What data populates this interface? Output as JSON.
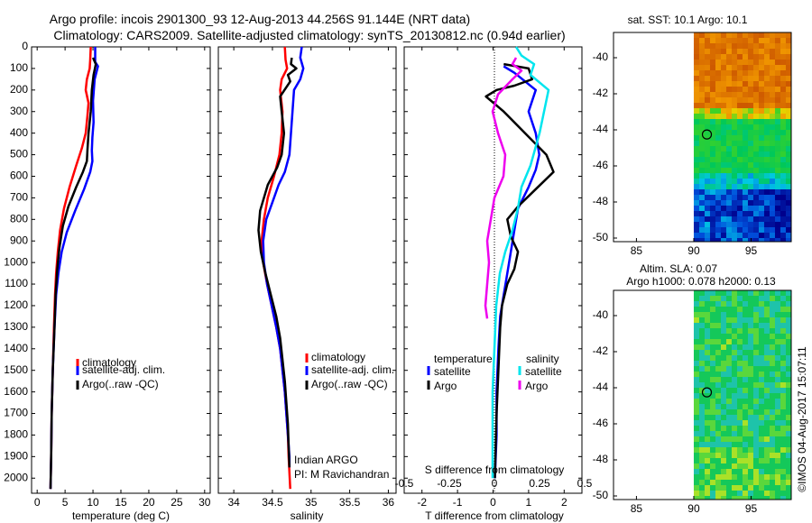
{
  "header": {
    "title_line1": "Argo profile: incois 2901300_93 12-Aug-2013 44.256S 91.144E (NRT data)",
    "title_line2": "Climatology: CARS2009. Satellite-adjusted climatology: synTS_20130812.nc (0.94d earlier)"
  },
  "colors": {
    "climatology": "#ff0000",
    "satellite": "#0000ff",
    "argo": "#000000",
    "sat_salinity": "#00e5ee",
    "argo_salinity": "#ee00ee"
  },
  "chart_data": [
    {
      "type": "line",
      "id": "temperature",
      "xlabel": "temperature (deg C)",
      "ylabel": "",
      "xlim": [
        -1,
        31
      ],
      "ylim": [
        2070,
        0
      ],
      "xticks": [
        "0",
        "5",
        "10",
        "15",
        "20",
        "25",
        "30"
      ],
      "xtick_values": [
        0,
        5,
        10,
        15,
        20,
        25,
        30
      ],
      "yticks": [
        0,
        100,
        200,
        300,
        400,
        500,
        600,
        700,
        800,
        900,
        1000,
        1100,
        1200,
        1300,
        1400,
        1500,
        1600,
        1700,
        1800,
        1900,
        2000
      ],
      "legend": [
        "climatology",
        "satellite-adj. clim.",
        "Argo(..raw -QC)"
      ],
      "series": [
        {
          "name": "climatology",
          "color": "#ff0000",
          "points": [
            [
              9.6,
              0
            ],
            [
              9.5,
              60
            ],
            [
              9.4,
              100
            ],
            [
              8.9,
              150
            ],
            [
              8.7,
              200
            ],
            [
              9.2,
              260
            ],
            [
              9.0,
              320
            ],
            [
              8.7,
              400
            ],
            [
              8.0,
              470
            ],
            [
              7.0,
              550
            ],
            [
              5.8,
              650
            ],
            [
              4.8,
              750
            ],
            [
              4.1,
              850
            ],
            [
              3.7,
              950
            ],
            [
              3.4,
              1050
            ],
            [
              3.2,
              1150
            ],
            [
              3.0,
              1300
            ],
            [
              2.8,
              1500
            ],
            [
              2.6,
              1700
            ],
            [
              2.5,
              1900
            ],
            [
              2.4,
              2050
            ]
          ]
        },
        {
          "name": "satellite-adj. clim.",
          "color": "#0000ff",
          "points": [
            [
              10.4,
              0
            ],
            [
              10.4,
              70
            ],
            [
              10.9,
              90
            ],
            [
              10.3,
              150
            ],
            [
              10.0,
              250
            ],
            [
              10.1,
              350
            ],
            [
              9.9,
              420
            ],
            [
              9.8,
              480
            ],
            [
              9.9,
              530
            ],
            [
              9.5,
              580
            ],
            [
              8.4,
              660
            ],
            [
              6.8,
              760
            ],
            [
              5.3,
              860
            ],
            [
              4.4,
              950
            ],
            [
              3.8,
              1050
            ],
            [
              3.4,
              1150
            ],
            [
              3.1,
              1300
            ],
            [
              2.8,
              1500
            ],
            [
              2.6,
              1700
            ],
            [
              2.5,
              1900
            ],
            [
              2.4,
              2050
            ]
          ]
        },
        {
          "name": "Argo(..raw -QC)",
          "color": "#000000",
          "points": [
            [
              10.0,
              50
            ],
            [
              10.5,
              80
            ],
            [
              10.1,
              130
            ],
            [
              9.8,
              200
            ],
            [
              9.6,
              300
            ],
            [
              9.2,
              400
            ],
            [
              9.0,
              480
            ],
            [
              8.9,
              530
            ],
            [
              8.2,
              580
            ],
            [
              7.0,
              650
            ],
            [
              5.6,
              740
            ],
            [
              4.6,
              830
            ],
            [
              4.0,
              930
            ],
            [
              3.6,
              1030
            ],
            [
              3.3,
              1150
            ],
            [
              3.1,
              1300
            ],
            [
              2.8,
              1500
            ],
            [
              2.6,
              1700
            ],
            [
              2.5,
              1900
            ],
            [
              2.4,
              2050
            ]
          ]
        }
      ]
    },
    {
      "type": "line",
      "id": "salinity",
      "xlabel": "salinity",
      "xlim": [
        33.8,
        36.1
      ],
      "ylim": [
        2070,
        0
      ],
      "xticks": [
        "34",
        "34.5",
        "35",
        "35.5",
        "36"
      ],
      "xtick_values": [
        34,
        34.5,
        35,
        35.5,
        36
      ],
      "legend": [
        "climatology",
        "satellite-adj. clim.",
        "Argo(..raw -QC)"
      ],
      "annotation": [
        "Indian ARGO",
        "PI: M Ravichandran"
      ],
      "series": [
        {
          "name": "climatology",
          "color": "#ff0000",
          "points": [
            [
              34.66,
              0
            ],
            [
              34.67,
              60
            ],
            [
              34.69,
              100
            ],
            [
              34.62,
              150
            ],
            [
              34.6,
              200
            ],
            [
              34.63,
              300
            ],
            [
              34.62,
              400
            ],
            [
              34.59,
              500
            ],
            [
              34.52,
              600
            ],
            [
              34.44,
              700
            ],
            [
              34.39,
              800
            ],
            [
              34.36,
              900
            ],
            [
              34.38,
              1000
            ],
            [
              34.43,
              1100
            ],
            [
              34.49,
              1200
            ],
            [
              34.55,
              1300
            ],
            [
              34.6,
              1400
            ],
            [
              34.63,
              1500
            ],
            [
              34.66,
              1600
            ],
            [
              34.68,
              1700
            ],
            [
              34.7,
              1800
            ],
            [
              34.71,
              1900
            ],
            [
              34.73,
              2050
            ]
          ]
        },
        {
          "name": "satellite-adj. clim.",
          "color": "#0000ff",
          "points": [
            [
              34.88,
              0
            ],
            [
              34.86,
              50
            ],
            [
              34.9,
              100
            ],
            [
              34.86,
              150
            ],
            [
              34.78,
              200
            ],
            [
              34.76,
              300
            ],
            [
              34.74,
              400
            ],
            [
              34.72,
              500
            ],
            [
              34.66,
              580
            ],
            [
              34.58,
              640
            ],
            [
              34.5,
              720
            ],
            [
              34.42,
              800
            ],
            [
              34.38,
              900
            ],
            [
              34.39,
              1000
            ],
            [
              34.43,
              1100
            ],
            [
              34.49,
              1200
            ],
            [
              34.55,
              1300
            ],
            [
              34.6,
              1400
            ],
            [
              34.63,
              1500
            ],
            [
              34.66,
              1600
            ],
            [
              34.68,
              1700
            ],
            [
              34.7,
              1800
            ],
            [
              34.72,
              1900
            ],
            [
              34.72,
              1950
            ]
          ]
        },
        {
          "name": "Argo(..raw -QC)",
          "color": "#000000",
          "points": [
            [
              34.75,
              50
            ],
            [
              34.74,
              80
            ],
            [
              34.81,
              100
            ],
            [
              34.7,
              130
            ],
            [
              34.73,
              160
            ],
            [
              34.6,
              230
            ],
            [
              34.62,
              300
            ],
            [
              34.65,
              400
            ],
            [
              34.62,
              500
            ],
            [
              34.56,
              560
            ],
            [
              34.44,
              640
            ],
            [
              34.34,
              760
            ],
            [
              34.32,
              850
            ],
            [
              34.35,
              950
            ],
            [
              34.41,
              1050
            ],
            [
              34.48,
              1150
            ],
            [
              34.55,
              1250
            ],
            [
              34.6,
              1350
            ],
            [
              34.63,
              1450
            ],
            [
              34.66,
              1550
            ],
            [
              34.68,
              1650
            ],
            [
              34.7,
              1750
            ],
            [
              34.71,
              1850
            ],
            [
              34.72,
              1950
            ]
          ]
        }
      ]
    },
    {
      "type": "line",
      "id": "difference",
      "xlabel": "T difference from climatology",
      "xlabel2": "S difference from climatology",
      "xlim": [
        -2.5,
        2.5
      ],
      "ylim": [
        2070,
        0
      ],
      "xticks": [
        "-2",
        "-1",
        "0",
        "1",
        "2"
      ],
      "xtick_values": [
        -2,
        -1,
        0,
        1,
        2
      ],
      "s_ticks": [
        "-0.5",
        "-0.25",
        "0",
        "0.25",
        "0.5"
      ],
      "s_tick_values": [
        -0.5,
        -0.25,
        0,
        0.25,
        0.5
      ],
      "legend_heads": [
        "temperature",
        "salinity"
      ],
      "legend": [
        "satellite",
        "Argo",
        "satellite",
        "Argo"
      ],
      "series": [
        {
          "name": "T satellite",
          "color": "#0000ff",
          "points": [
            [
              0.3,
              90
            ],
            [
              0.6,
              120
            ],
            [
              1.2,
              200
            ],
            [
              1.0,
              300
            ],
            [
              1.2,
              400
            ],
            [
              1.3,
              500
            ],
            [
              1.2,
              570
            ],
            [
              1.0,
              650
            ],
            [
              0.7,
              750
            ],
            [
              0.6,
              850
            ],
            [
              0.5,
              950
            ],
            [
              0.4,
              1050
            ],
            [
              0.3,
              1150
            ],
            [
              0.2,
              1250
            ],
            [
              0.15,
              1400
            ],
            [
              0.1,
              1600
            ],
            [
              0.1,
              1800
            ],
            [
              0.05,
              2000
            ]
          ]
        },
        {
          "name": "T Argo",
          "color": "#000000",
          "points": [
            [
              0.3,
              80
            ],
            [
              1.0,
              100
            ],
            [
              1.1,
              150
            ],
            [
              0.6,
              180
            ],
            [
              0.1,
              200
            ],
            [
              -0.2,
              230
            ],
            [
              0.3,
              300
            ],
            [
              0.9,
              400
            ],
            [
              1.5,
              500
            ],
            [
              1.7,
              580
            ],
            [
              1.2,
              660
            ],
            [
              0.7,
              740
            ],
            [
              0.4,
              800
            ],
            [
              0.5,
              880
            ],
            [
              0.7,
              950
            ],
            [
              0.6,
              1030
            ],
            [
              0.4,
              1100
            ],
            [
              0.25,
              1200
            ],
            [
              0.2,
              1300
            ],
            [
              0.15,
              1500
            ],
            [
              0.1,
              1700
            ],
            [
              0.05,
              2000
            ]
          ]
        },
        {
          "name": "S satellite",
          "color": "#00e5ee",
          "points": [
            [
              0.12,
              0
            ],
            [
              0.15,
              40
            ],
            [
              0.22,
              80
            ],
            [
              0.2,
              130
            ],
            [
              0.3,
              200
            ],
            [
              0.25,
              400
            ],
            [
              0.2,
              550
            ],
            [
              0.15,
              650
            ],
            [
              0.13,
              750
            ],
            [
              0.1,
              850
            ],
            [
              0.06,
              950
            ],
            [
              0.03,
              1050
            ],
            [
              0.01,
              1200
            ],
            [
              0.0,
              1400
            ],
            [
              -0.01,
              1600
            ],
            [
              -0.01,
              1800
            ],
            [
              -0.01,
              2000
            ]
          ]
        },
        {
          "name": "S Argo",
          "color": "#ee00ee",
          "points": [
            [
              0.12,
              50
            ],
            [
              0.1,
              80
            ],
            [
              0.15,
              110
            ],
            [
              0.1,
              150
            ],
            [
              0.02,
              220
            ],
            [
              -0.01,
              300
            ],
            [
              0.02,
              400
            ],
            [
              0.06,
              500
            ],
            [
              0.05,
              600
            ],
            [
              0.0,
              700
            ],
            [
              -0.02,
              800
            ],
            [
              -0.04,
              900
            ],
            [
              -0.03,
              1000
            ],
            [
              -0.04,
              1100
            ],
            [
              -0.05,
              1200
            ],
            [
              -0.04,
              1260
            ]
          ]
        }
      ]
    },
    {
      "type": "heatmap",
      "id": "sst_map",
      "title": "sat. SST: 10.1  Argo: 10.1",
      "xlim": [
        83,
        98.5
      ],
      "ylim": [
        -50.2,
        -38.6
      ],
      "xticks": [
        "85",
        "90",
        "95"
      ],
      "xtick_values": [
        85,
        90,
        95
      ],
      "yticks": [
        "-40",
        "-42",
        "-44",
        "-46",
        "-48",
        "-50"
      ],
      "ytick_values": [
        -40,
        -42,
        -44,
        -46,
        -48,
        -50
      ],
      "data_lon_start": 90,
      "marker": [
        91.144,
        -44.256
      ]
    },
    {
      "type": "heatmap",
      "id": "sla_map",
      "title_line1": "Altim. SLA: 0.07",
      "title_line2": "Argo h1000: 0.078  h2000: 0.13",
      "xlim": [
        83,
        98.5
      ],
      "ylim": [
        -50.2,
        -38.6
      ],
      "xticks": [
        "85",
        "90",
        "95"
      ],
      "xtick_values": [
        85,
        90,
        95
      ],
      "yticks": [
        "-40",
        "-42",
        "-44",
        "-46",
        "-48",
        "-50"
      ],
      "ytick_values": [
        -40,
        -42,
        -44,
        -46,
        -48,
        -50
      ],
      "data_lon_start": 90,
      "marker": [
        91.144,
        -44.256
      ]
    }
  ],
  "credit": "©IMOS 04-Aug-2017 15:07:11"
}
